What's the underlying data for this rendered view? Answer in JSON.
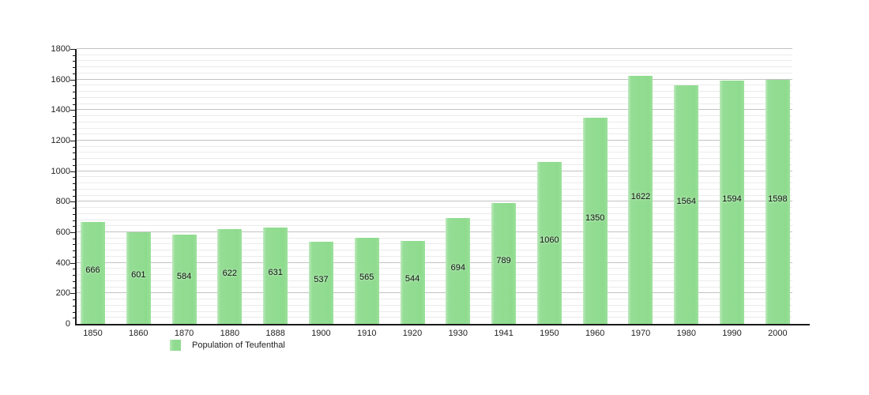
{
  "page": {
    "background_color": "#ffffff",
    "text_color": "#222222"
  },
  "legend": {
    "label": "Population of Teufenthal",
    "swatch_color": "#90db90"
  },
  "chart_data": {
    "type": "bar",
    "title": "",
    "xlabel": "",
    "ylabel": "",
    "categories": [
      "1850",
      "1860",
      "1870",
      "1880",
      "1888",
      "1900",
      "1910",
      "1920",
      "1930",
      "1941",
      "1950",
      "1960",
      "1970",
      "1980",
      "1990",
      "2000"
    ],
    "values": [
      666,
      601,
      584,
      622,
      631,
      537,
      565,
      544,
      694,
      789,
      1060,
      1350,
      1622,
      1564,
      1594,
      1598
    ],
    "value_labels": [
      "666",
      "601",
      "584",
      "622",
      "631",
      "537",
      "565",
      "544",
      "694",
      "789",
      "1060",
      "1350",
      "1622",
      "1564",
      "1594",
      "1598"
    ],
    "ylim": [
      0,
      1800
    ],
    "yticks": [
      0,
      200,
      400,
      600,
      800,
      1000,
      1200,
      1400,
      1600,
      1800
    ],
    "ytick_labels": [
      "0",
      "200",
      "400",
      "600",
      "800",
      "1000",
      "1200",
      "1400",
      "1600",
      "1800"
    ],
    "ytick_step": 200,
    "minor_gridline_step": 40,
    "grid": true,
    "legend_position": "bottom-left",
    "legend_entries": [
      "Population of Teufenthal"
    ],
    "bar_color": "#90db90",
    "bar_highlight_color": "#bdeabd",
    "major_gridline_color": "#c3c3c3",
    "minor_gridline_color": "#ebebeb",
    "axis_color": "#1a1a1a"
  }
}
